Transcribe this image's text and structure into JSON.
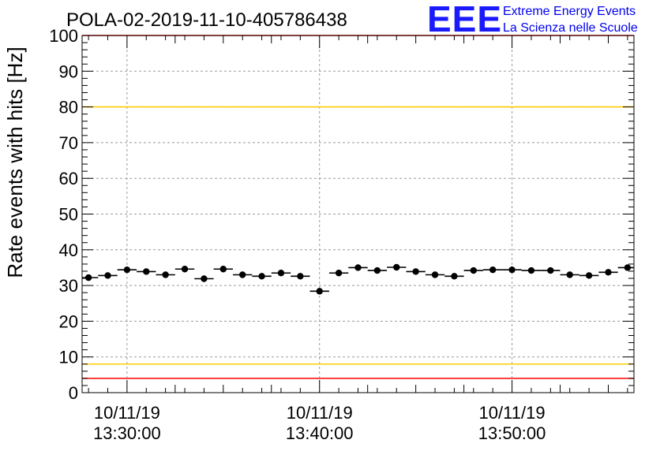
{
  "chart_data": {
    "type": "scatter",
    "title": "POLA-02-2019-11-10-405786438",
    "ylabel": "Rate events with hits [Hz]",
    "xlabel": "",
    "ylim": [
      0,
      100
    ],
    "yticks": [
      0,
      10,
      20,
      30,
      40,
      50,
      60,
      70,
      80,
      90,
      100
    ],
    "xticks": [
      {
        "date": "10/11/19",
        "time": "13:30:00",
        "value": "13:30:00"
      },
      {
        "date": "10/11/19",
        "time": "13:40:00",
        "value": "13:40:00"
      },
      {
        "date": "10/11/19",
        "time": "13:50:00",
        "value": "13:50:00"
      }
    ],
    "xlim": [
      "13:27:40",
      "13:56:20"
    ],
    "grid": true,
    "reference_lines": [
      {
        "y": 100,
        "color": "#ff0000"
      },
      {
        "y": 80,
        "color": "#ffcc00"
      },
      {
        "y": 8,
        "color": "#ffcc00"
      },
      {
        "y": 4,
        "color": "#ff0000"
      }
    ],
    "bin_width_minutes": 1,
    "series": [
      {
        "marker_color": "#000000",
        "x": [
          "13:28:00",
          "13:29:00",
          "13:30:00",
          "13:31:00",
          "13:32:00",
          "13:33:00",
          "13:34:00",
          "13:35:00",
          "13:36:00",
          "13:37:00",
          "13:38:00",
          "13:39:00",
          "13:40:00",
          "13:41:00",
          "13:42:00",
          "13:43:00",
          "13:44:00",
          "13:45:00",
          "13:46:00",
          "13:47:00",
          "13:48:00",
          "13:49:00",
          "13:50:00",
          "13:51:00",
          "13:52:00",
          "13:53:00",
          "13:54:00",
          "13:55:00",
          "13:56:00"
        ],
        "values": [
          32.2,
          32.8,
          34.4,
          33.9,
          33.0,
          34.6,
          31.9,
          34.6,
          33.0,
          32.6,
          33.5,
          32.6,
          28.4,
          33.5,
          35.0,
          34.2,
          35.1,
          33.9,
          33.0,
          32.6,
          34.2,
          34.4,
          34.4,
          34.2,
          34.2,
          33.0,
          32.8,
          33.7,
          35.0
        ]
      }
    ]
  },
  "logo": {
    "letters": "EEE",
    "line1": "Extreme Energy Events",
    "line2": "La Scienza nelle Scuole"
  }
}
